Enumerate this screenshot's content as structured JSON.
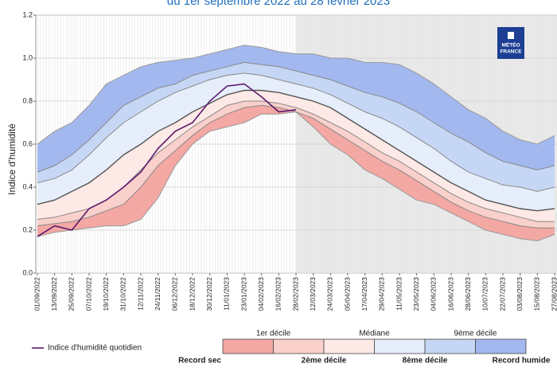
{
  "chart_data": {
    "type": "band-line",
    "title": "du 1er septembre 2022 au 28 février 2023",
    "y_label": "Indice d'humidité",
    "logo": [
      "MÉTÉO",
      "FRANCE"
    ],
    "categories": [
      "01/09/2022",
      "13/09/2022",
      "25/09/2022",
      "07/10/2022",
      "19/10/2022",
      "31/10/2022",
      "12/11/2022",
      "24/11/2022",
      "06/12/2022",
      "18/12/2022",
      "30/12/2022",
      "11/01/2023",
      "23/01/2023",
      "04/02/2023",
      "16/02/2023",
      "28/02/2023",
      "12/03/2023",
      "24/03/2023",
      "05/04/2023",
      "17/04/2023",
      "29/04/2023",
      "11/05/2023",
      "23/05/2023",
      "04/06/2023",
      "16/06/2023",
      "28/06/2023",
      "10/07/2023",
      "22/07/2023",
      "03/08/2023",
      "15/08/2023",
      "27/08/2023"
    ],
    "shade_from": "28/02/2023",
    "ylim": [
      0,
      1.2
    ],
    "yticks": [
      {
        "value": 0,
        "label": "0.0"
      },
      0.2,
      0.4,
      0.6,
      0.8,
      {
        "value": 1,
        "label": "1.0"
      },
      1.2
    ],
    "grid": true,
    "band_colors": [
      "#f4a8a3",
      "#f9d0cb",
      "#fde9e5",
      "#e6eefb",
      "#c6d7f5",
      "#a2b8ef"
    ],
    "series": [
      {
        "name": "Record sec",
        "color": "#999999",
        "values": [
          0.17,
          0.19,
          0.2,
          0.21,
          0.22,
          0.22,
          0.25,
          0.35,
          0.5,
          0.6,
          0.66,
          0.68,
          0.7,
          0.74,
          0.74,
          0.75,
          0.68,
          0.6,
          0.55,
          0.48,
          0.44,
          0.39,
          0.34,
          0.32,
          0.28,
          0.24,
          0.2,
          0.18,
          0.16,
          0.15,
          0.18
        ]
      },
      {
        "name": "1er décile",
        "color": "#888888",
        "values": [
          0.22,
          0.23,
          0.24,
          0.26,
          0.29,
          0.32,
          0.4,
          0.5,
          0.57,
          0.64,
          0.7,
          0.74,
          0.77,
          0.78,
          0.77,
          0.75,
          0.72,
          0.67,
          0.62,
          0.57,
          0.52,
          0.48,
          0.43,
          0.38,
          0.33,
          0.29,
          0.26,
          0.24,
          0.22,
          0.21,
          0.21
        ]
      },
      {
        "name": "2ème décile",
        "color": "#888888",
        "values": [
          0.25,
          0.26,
          0.28,
          0.3,
          0.34,
          0.4,
          0.48,
          0.56,
          0.62,
          0.68,
          0.73,
          0.78,
          0.8,
          0.8,
          0.79,
          0.77,
          0.74,
          0.7,
          0.66,
          0.61,
          0.56,
          0.52,
          0.47,
          0.42,
          0.37,
          0.33,
          0.3,
          0.28,
          0.26,
          0.24,
          0.24
        ]
      },
      {
        "name": "Médiane",
        "color": "#555555",
        "values": [
          0.32,
          0.34,
          0.38,
          0.42,
          0.48,
          0.55,
          0.6,
          0.66,
          0.7,
          0.75,
          0.79,
          0.83,
          0.85,
          0.85,
          0.84,
          0.82,
          0.8,
          0.77,
          0.72,
          0.67,
          0.62,
          0.57,
          0.52,
          0.47,
          0.42,
          0.38,
          0.34,
          0.32,
          0.3,
          0.29,
          0.3
        ]
      },
      {
        "name": "8ème décile",
        "color": "#888888",
        "values": [
          0.42,
          0.44,
          0.48,
          0.55,
          0.63,
          0.7,
          0.75,
          0.8,
          0.84,
          0.87,
          0.9,
          0.92,
          0.93,
          0.92,
          0.9,
          0.88,
          0.86,
          0.83,
          0.79,
          0.75,
          0.72,
          0.68,
          0.63,
          0.58,
          0.52,
          0.47,
          0.44,
          0.41,
          0.4,
          0.38,
          0.4
        ]
      },
      {
        "name": "9ème décile",
        "color": "#888888",
        "values": [
          0.47,
          0.5,
          0.55,
          0.62,
          0.7,
          0.78,
          0.82,
          0.86,
          0.88,
          0.92,
          0.94,
          0.96,
          0.98,
          0.97,
          0.96,
          0.94,
          0.92,
          0.9,
          0.87,
          0.84,
          0.82,
          0.79,
          0.75,
          0.7,
          0.65,
          0.61,
          0.56,
          0.52,
          0.5,
          0.48,
          0.5
        ]
      },
      {
        "name": "Record humide",
        "color": "#999999",
        "values": [
          0.6,
          0.66,
          0.7,
          0.78,
          0.88,
          0.92,
          0.96,
          0.98,
          0.99,
          1.0,
          1.02,
          1.04,
          1.06,
          1.05,
          1.03,
          1.02,
          1.02,
          1.0,
          1.0,
          0.98,
          0.98,
          0.97,
          0.93,
          0.88,
          0.82,
          0.76,
          0.72,
          0.66,
          0.62,
          0.6,
          0.64
        ]
      },
      {
        "name": "Indice d'humidité quotidien",
        "color": "#5a1a6e",
        "values": [
          0.17,
          0.22,
          0.2,
          0.3,
          0.34,
          0.4,
          0.47,
          0.58,
          0.66,
          0.7,
          0.8,
          0.87,
          0.88,
          0.82,
          0.75,
          0.76,
          null,
          null,
          null,
          null,
          null,
          null,
          null,
          null,
          null,
          null,
          null,
          null,
          null,
          null,
          null
        ]
      }
    ]
  }
}
